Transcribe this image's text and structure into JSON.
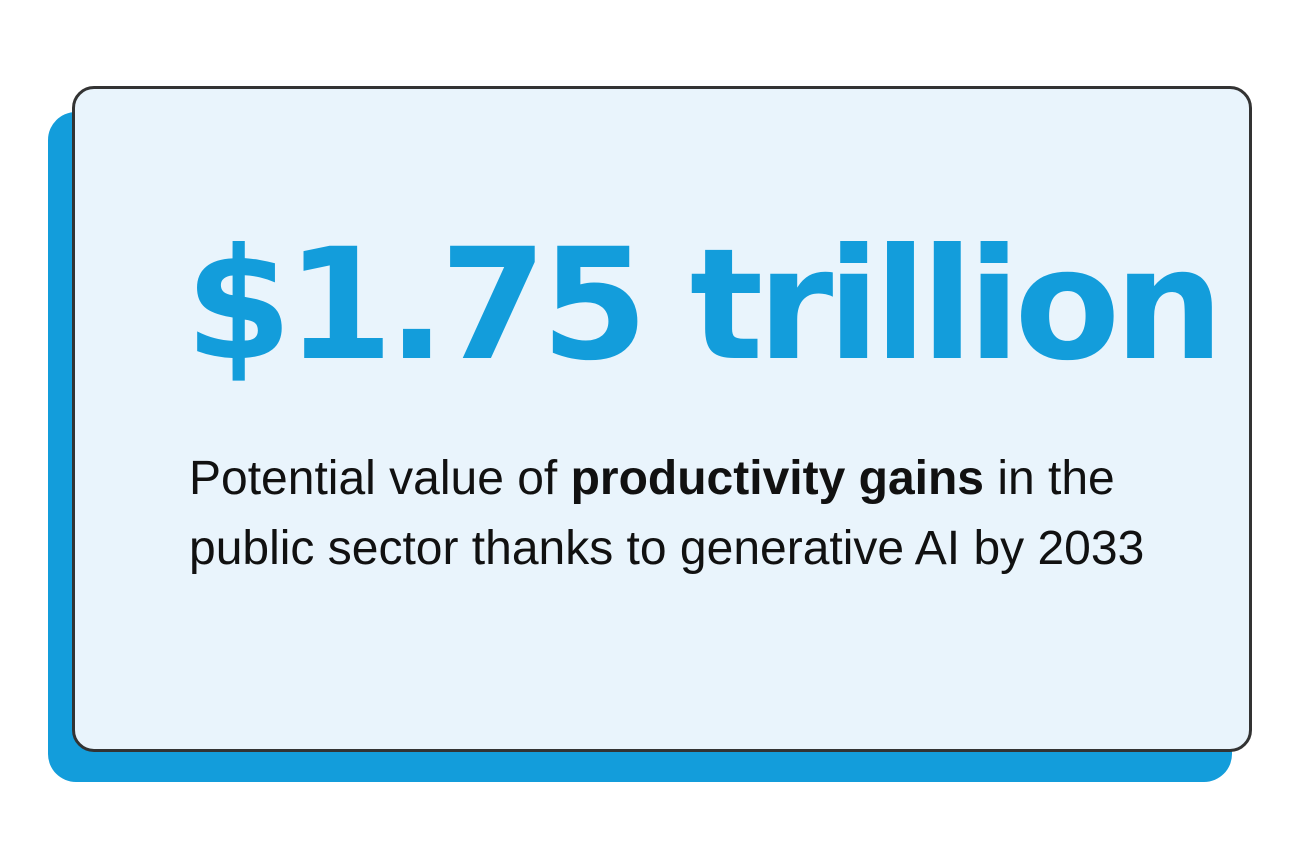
{
  "card": {
    "headline": "$1.75 trillion",
    "description": {
      "before": "Potential value of ",
      "emphasis": "productivity gains",
      "after": " in the public sector thanks to generative AI by 2033"
    }
  },
  "colors": {
    "accent": "#139ddb",
    "card_background": "#e9f4fc",
    "border": "#333333",
    "text": "#111111"
  }
}
